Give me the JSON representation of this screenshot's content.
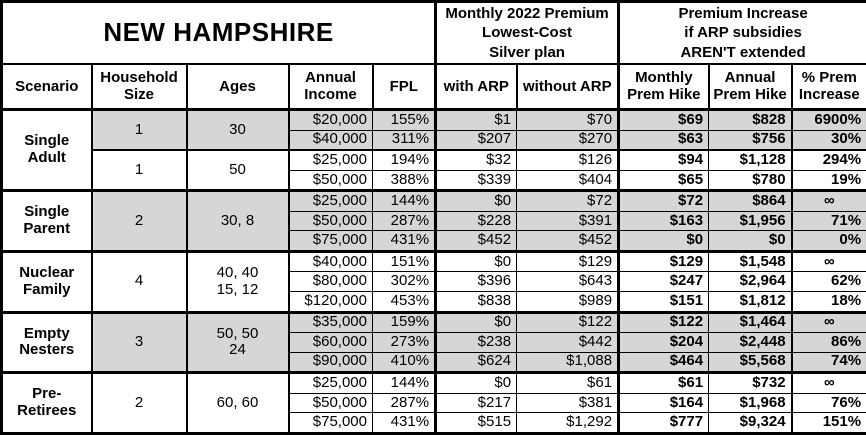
{
  "title": "NEW HAMPSHIRE",
  "header": {
    "premium_group": "Monthly 2022 Premium\nLowest-Cost\nSilver plan",
    "increase_group": "Premium Increase\nif ARP subsidies\nAREN'T extended",
    "columns": [
      "Scenario",
      "Household\nSize",
      "Ages",
      "Annual\nIncome",
      "FPL",
      "with ARP",
      "without ARP",
      "Monthly\nPrem Hike",
      "Annual\nPrem Hike",
      "% Prem\nIncrease"
    ]
  },
  "colors": {
    "shaded_row": "#d6d6d6",
    "background": "#ffffff",
    "border": "#000000",
    "text": "#000000"
  },
  "groups": [
    {
      "scenario": "Single\nAdult",
      "subgroups": [
        {
          "household_size": "1",
          "ages": "30",
          "shaded": true,
          "rows": [
            {
              "income": "$20,000",
              "fpl": "155%",
              "with_arp": "$1",
              "without_arp": "$70",
              "monthly_hike": "$69",
              "annual_hike": "$828",
              "pct_increase": "6900%"
            },
            {
              "income": "$40,000",
              "fpl": "311%",
              "with_arp": "$207",
              "without_arp": "$270",
              "monthly_hike": "$63",
              "annual_hike": "$756",
              "pct_increase": "30%"
            }
          ]
        },
        {
          "household_size": "1",
          "ages": "50",
          "shaded": false,
          "rows": [
            {
              "income": "$25,000",
              "fpl": "194%",
              "with_arp": "$32",
              "without_arp": "$126",
              "monthly_hike": "$94",
              "annual_hike": "$1,128",
              "pct_increase": "294%"
            },
            {
              "income": "$50,000",
              "fpl": "388%",
              "with_arp": "$339",
              "without_arp": "$404",
              "monthly_hike": "$65",
              "annual_hike": "$780",
              "pct_increase": "19%"
            }
          ]
        }
      ]
    },
    {
      "scenario": "Single\nParent",
      "subgroups": [
        {
          "household_size": "2",
          "ages": "30, 8",
          "shaded": true,
          "rows": [
            {
              "income": "$25,000",
              "fpl": "144%",
              "with_arp": "$0",
              "without_arp": "$72",
              "monthly_hike": "$72",
              "annual_hike": "$864",
              "pct_increase": "∞"
            },
            {
              "income": "$50,000",
              "fpl": "287%",
              "with_arp": "$228",
              "without_arp": "$391",
              "monthly_hike": "$163",
              "annual_hike": "$1,956",
              "pct_increase": "71%"
            },
            {
              "income": "$75,000",
              "fpl": "431%",
              "with_arp": "$452",
              "without_arp": "$452",
              "monthly_hike": "$0",
              "annual_hike": "$0",
              "pct_increase": "0%"
            }
          ]
        }
      ]
    },
    {
      "scenario": "Nuclear\nFamily",
      "subgroups": [
        {
          "household_size": "4",
          "ages": "40, 40\n15, 12",
          "shaded": false,
          "rows": [
            {
              "income": "$40,000",
              "fpl": "151%",
              "with_arp": "$0",
              "without_arp": "$129",
              "monthly_hike": "$129",
              "annual_hike": "$1,548",
              "pct_increase": "∞"
            },
            {
              "income": "$80,000",
              "fpl": "302%",
              "with_arp": "$396",
              "without_arp": "$643",
              "monthly_hike": "$247",
              "annual_hike": "$2,964",
              "pct_increase": "62%"
            },
            {
              "income": "$120,000",
              "fpl": "453%",
              "with_arp": "$838",
              "without_arp": "$989",
              "monthly_hike": "$151",
              "annual_hike": "$1,812",
              "pct_increase": "18%"
            }
          ]
        }
      ]
    },
    {
      "scenario": "Empty\nNesters",
      "subgroups": [
        {
          "household_size": "3",
          "ages": "50, 50\n24",
          "shaded": true,
          "rows": [
            {
              "income": "$35,000",
              "fpl": "159%",
              "with_arp": "$0",
              "without_arp": "$122",
              "monthly_hike": "$122",
              "annual_hike": "$1,464",
              "pct_increase": "∞"
            },
            {
              "income": "$60,000",
              "fpl": "273%",
              "with_arp": "$238",
              "without_arp": "$442",
              "monthly_hike": "$204",
              "annual_hike": "$2,448",
              "pct_increase": "86%"
            },
            {
              "income": "$90,000",
              "fpl": "410%",
              "with_arp": "$624",
              "without_arp": "$1,088",
              "monthly_hike": "$464",
              "annual_hike": "$5,568",
              "pct_increase": "74%"
            }
          ]
        }
      ]
    },
    {
      "scenario": "Pre-\nRetirees",
      "subgroups": [
        {
          "household_size": "2",
          "ages": "60, 60",
          "shaded": false,
          "rows": [
            {
              "income": "$25,000",
              "fpl": "144%",
              "with_arp": "$0",
              "without_arp": "$61",
              "monthly_hike": "$61",
              "annual_hike": "$732",
              "pct_increase": "∞"
            },
            {
              "income": "$50,000",
              "fpl": "287%",
              "with_arp": "$217",
              "without_arp": "$381",
              "monthly_hike": "$164",
              "annual_hike": "$1,968",
              "pct_increase": "76%"
            },
            {
              "income": "$75,000",
              "fpl": "431%",
              "with_arp": "$515",
              "without_arp": "$1,292",
              "monthly_hike": "$777",
              "annual_hike": "$9,324",
              "pct_increase": "151%"
            }
          ]
        }
      ]
    }
  ]
}
